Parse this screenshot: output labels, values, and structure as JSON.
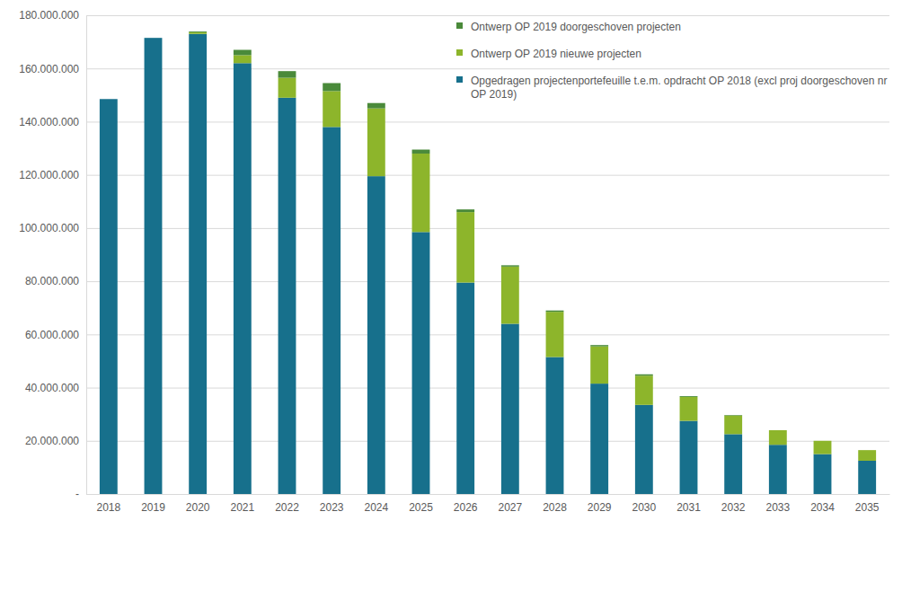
{
  "chart_data": {
    "type": "bar",
    "stacked": true,
    "grid": true,
    "legend": "top-right",
    "categories": [
      "2018",
      "2019",
      "2020",
      "2021",
      "2022",
      "2023",
      "2024",
      "2025",
      "2026",
      "2027",
      "2028",
      "2029",
      "2030",
      "2031",
      "2032",
      "2033",
      "2034",
      "2035"
    ],
    "series": [
      {
        "name": "Opgedragen projectenportefeuille t.e.m. opdracht OP 2018 (excl proj doorgeschoven nr OP 2019)",
        "color": "#17708c",
        "values": [
          148500000,
          171500000,
          173000000,
          162000000,
          149000000,
          138000000,
          119500000,
          98500000,
          79500000,
          64000000,
          51500000,
          41500000,
          33500000,
          27500000,
          22500000,
          18500000,
          15000000,
          12500000
        ]
      },
      {
        "name": "Ontwerp OP 2019 nieuwe projecten",
        "color": "#8db52b",
        "values": [
          0,
          0,
          600000,
          3000000,
          7500000,
          13500000,
          25500000,
          29500000,
          26500000,
          21500000,
          17000000,
          14000000,
          11000000,
          9000000,
          7000000,
          5500000,
          5000000,
          4000000
        ]
      },
      {
        "name": "Ontwerp OP 2019 doorgeschoven projecten",
        "color": "#4a8a3a",
        "values": [
          0,
          0,
          300000,
          2000000,
          2500000,
          3000000,
          2000000,
          1500000,
          1000000,
          500000,
          500000,
          500000,
          500000,
          300000,
          200000,
          0,
          0,
          0
        ]
      }
    ],
    "ylim": [
      0,
      180000000
    ],
    "yticks": [
      {
        "value": 0,
        "label": "-"
      },
      {
        "value": 20000000,
        "label": "20.000.000"
      },
      {
        "value": 40000000,
        "label": "40.000.000"
      },
      {
        "value": 60000000,
        "label": "60.000.000"
      },
      {
        "value": 80000000,
        "label": "80.000.000"
      },
      {
        "value": 100000000,
        "label": "100.000.000"
      },
      {
        "value": 120000000,
        "label": "120.000.000"
      },
      {
        "value": 140000000,
        "label": "140.000.000"
      },
      {
        "value": 160000000,
        "label": "160.000.000"
      },
      {
        "value": 180000000,
        "label": "180.000.000"
      }
    ]
  }
}
